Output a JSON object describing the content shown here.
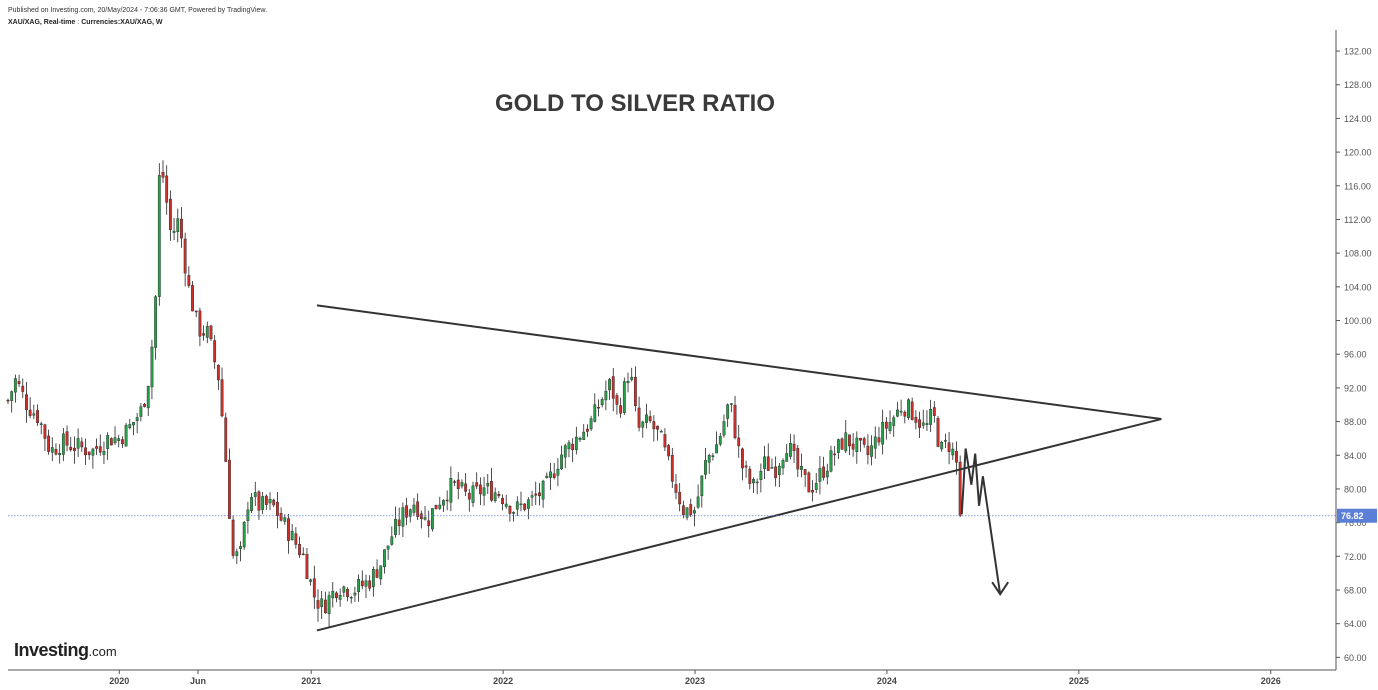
{
  "header": {
    "published": "Published on Investing.com, 20/May/2024 - 7:06:36 GMT, Powered by TradingView.",
    "symbol": "XAU/XAG, Real-time",
    "currencies": "Currencies:XAU/XAG, W"
  },
  "logo": {
    "main": "Investing",
    "suffix": ".com"
  },
  "colors": {
    "up": "#26a048",
    "down": "#c9302c",
    "wick": "#222222",
    "trendline": "#333333",
    "price_line": "#5b7fd6",
    "price_badge": "#5b7fd6",
    "title": "#3a3a3a"
  },
  "chart_data": {
    "type": "candlestick",
    "title": "GOLD TO SILVER RATIO",
    "timeframe": "W",
    "ylim": [
      58.5,
      134.5
    ],
    "y_ticks": [
      "60.00",
      "64.00",
      "68.00",
      "72.00",
      "76.00",
      "80.00",
      "84.00",
      "88.00",
      "92.00",
      "96.00",
      "100.00",
      "104.00",
      "108.00",
      "112.00",
      "116.00",
      "120.00",
      "124.00",
      "128.00",
      "132.00"
    ],
    "x_ticks": [
      {
        "label": "2020",
        "t": 2020.0
      },
      {
        "label": "Jun",
        "t": 2020.41
      },
      {
        "label": "2021",
        "t": 2021.0
      },
      {
        "label": "2022",
        "t": 2022.0
      },
      {
        "label": "2023",
        "t": 2023.0
      },
      {
        "label": "2024",
        "t": 2024.0
      },
      {
        "label": "2025",
        "t": 2025.0
      },
      {
        "label": "2026",
        "t": 2026.0
      }
    ],
    "x_range": [
      2019.42,
      2026.34
    ],
    "last_price": "76.82",
    "last_value": 76.82,
    "anchors": [
      [
        2019.42,
        90.5
      ],
      [
        2019.46,
        93.0
      ],
      [
        2019.52,
        90.0
      ],
      [
        2019.58,
        88.5
      ],
      [
        2019.64,
        84.5
      ],
      [
        2019.7,
        85.5
      ],
      [
        2019.78,
        85.0
      ],
      [
        2019.86,
        84.5
      ],
      [
        2019.94,
        86.0
      ],
      [
        2020.0,
        86.0
      ],
      [
        2020.06,
        87.5
      ],
      [
        2020.12,
        89.5
      ],
      [
        2020.16,
        94.0
      ],
      [
        2020.19,
        103.0
      ],
      [
        2020.21,
        118.0
      ],
      [
        2020.23,
        117.0
      ],
      [
        2020.27,
        110.0
      ],
      [
        2020.31,
        112.0
      ],
      [
        2020.36,
        104.0
      ],
      [
        2020.41,
        99.0
      ],
      [
        2020.46,
        98.5
      ],
      [
        2020.52,
        93.0
      ],
      [
        2020.56,
        82.0
      ],
      [
        2020.59,
        72.0
      ],
      [
        2020.63,
        72.0
      ],
      [
        2020.68,
        80.0
      ],
      [
        2020.72,
        78.0
      ],
      [
        2020.8,
        78.0
      ],
      [
        2020.88,
        75.0
      ],
      [
        2020.96,
        72.0
      ],
      [
        2021.02,
        67.0
      ],
      [
        2021.06,
        66.0
      ],
      [
        2021.14,
        68.5
      ],
      [
        2021.22,
        68.0
      ],
      [
        2021.3,
        69.0
      ],
      [
        2021.36,
        71.0
      ],
      [
        2021.42,
        74.5
      ],
      [
        2021.48,
        77.0
      ],
      [
        2021.54,
        78.5
      ],
      [
        2021.6,
        76.0
      ],
      [
        2021.66,
        78.5
      ],
      [
        2021.74,
        80.5
      ],
      [
        2021.82,
        79.0
      ],
      [
        2021.9,
        80.0
      ],
      [
        2021.98,
        79.5
      ],
      [
        2022.06,
        77.5
      ],
      [
        2022.14,
        78.5
      ],
      [
        2022.22,
        80.0
      ],
      [
        2022.3,
        84.0
      ],
      [
        2022.38,
        86.0
      ],
      [
        2022.46,
        88.0
      ],
      [
        2022.52,
        91.0
      ],
      [
        2022.56,
        92.5
      ],
      [
        2022.6,
        89.0
      ],
      [
        2022.66,
        94.5
      ],
      [
        2022.7,
        87.0
      ],
      [
        2022.76,
        88.0
      ],
      [
        2022.82,
        86.0
      ],
      [
        2022.88,
        81.5
      ],
      [
        2022.94,
        77.5
      ],
      [
        2023.0,
        77.5
      ],
      [
        2023.06,
        83.5
      ],
      [
        2023.12,
        85.5
      ],
      [
        2023.18,
        90.5
      ],
      [
        2023.24,
        83.0
      ],
      [
        2023.3,
        80.0
      ],
      [
        2023.36,
        83.0
      ],
      [
        2023.42,
        82.5
      ],
      [
        2023.48,
        85.5
      ],
      [
        2023.54,
        82.0
      ],
      [
        2023.6,
        80.0
      ],
      [
        2023.66,
        82.0
      ],
      [
        2023.72,
        84.0
      ],
      [
        2023.78,
        86.0
      ],
      [
        2023.84,
        85.0
      ],
      [
        2023.9,
        84.0
      ],
      [
        2023.96,
        86.5
      ],
      [
        2024.02,
        88.0
      ],
      [
        2024.08,
        90.0
      ],
      [
        2024.14,
        89.0
      ],
      [
        2024.2,
        87.0
      ],
      [
        2024.24,
        89.0
      ],
      [
        2024.28,
        84.5
      ],
      [
        2024.32,
        85.5
      ],
      [
        2024.36,
        83.5
      ],
      [
        2024.39,
        76.82
      ]
    ],
    "annotations": {
      "resistance_line": {
        "from": [
          2021.03,
          101.8
        ],
        "to": [
          2025.43,
          88.3
        ]
      },
      "support_line": {
        "from": [
          2021.03,
          63.2
        ],
        "to": [
          2025.43,
          88.3
        ]
      },
      "projection_path": [
        [
          2024.39,
          77.0
        ],
        [
          2024.41,
          84.8
        ],
        [
          2024.44,
          80.5
        ],
        [
          2024.46,
          84.2
        ],
        [
          2024.48,
          78.0
        ],
        [
          2024.5,
          81.5
        ],
        [
          2024.59,
          67.5
        ]
      ]
    }
  }
}
